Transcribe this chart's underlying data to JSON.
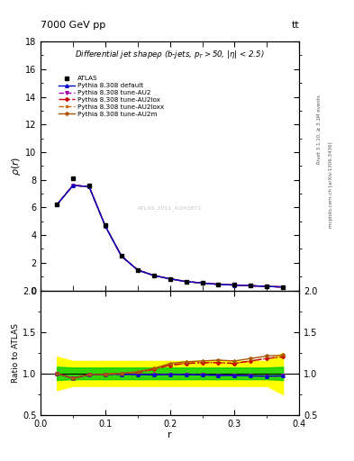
{
  "title_top": "7000 GeV pp",
  "title_top_right": "tt",
  "plot_title": "Differential jet shapep (b-jets, p_{T}>50, |\\eta| < 2.5)",
  "ylabel_main": "\\rho(r)",
  "ylabel_ratio": "Ratio to ATLAS",
  "xlabel": "r",
  "right_label_top": "Rivet 3.1.10, \\u2265 3.1M events",
  "right_label_bottom": "mcplots.cern.ch [arXiv:1306.3436]",
  "watermark": "ATLAS_2011_AI243871",
  "r_values": [
    0.025,
    0.05,
    0.075,
    0.1,
    0.125,
    0.15,
    0.175,
    0.2,
    0.225,
    0.25,
    0.275,
    0.3,
    0.325,
    0.35,
    0.375
  ],
  "atlas_data": [
    6.2,
    8.1,
    7.6,
    4.7,
    2.5,
    1.5,
    1.1,
    0.85,
    0.65,
    0.55,
    0.45,
    0.4,
    0.35,
    0.3,
    0.25
  ],
  "mc_data": [
    6.2,
    7.6,
    7.5,
    4.65,
    2.48,
    1.48,
    1.08,
    0.84,
    0.64,
    0.54,
    0.44,
    0.39,
    0.34,
    0.29,
    0.25
  ],
  "ratio_green_lo": [
    0.92,
    0.93,
    0.93,
    0.93,
    0.93,
    0.93,
    0.93,
    0.93,
    0.93,
    0.93,
    0.93,
    0.93,
    0.93,
    0.93,
    0.92
  ],
  "ratio_green_hi": [
    1.08,
    1.07,
    1.07,
    1.07,
    1.07,
    1.07,
    1.07,
    1.07,
    1.07,
    1.07,
    1.07,
    1.07,
    1.07,
    1.07,
    1.08
  ],
  "ratio_yellow_lo": [
    0.8,
    0.85,
    0.85,
    0.85,
    0.85,
    0.85,
    0.85,
    0.85,
    0.85,
    0.85,
    0.85,
    0.85,
    0.85,
    0.85,
    0.75
  ],
  "ratio_yellow_hi": [
    1.2,
    1.15,
    1.15,
    1.15,
    1.15,
    1.15,
    1.15,
    1.15,
    1.15,
    1.15,
    1.15,
    1.15,
    1.15,
    1.15,
    1.25
  ],
  "ratio_default": [
    1.0,
    0.94,
    0.987,
    0.989,
    0.99,
    0.987,
    0.982,
    0.988,
    0.985,
    0.982,
    0.978,
    0.975,
    0.971,
    0.967,
    0.97
  ],
  "ratio_au2": [
    1.0,
    0.94,
    0.987,
    0.989,
    0.99,
    0.987,
    0.982,
    0.988,
    0.985,
    0.982,
    0.978,
    0.975,
    0.971,
    0.967,
    0.97
  ],
  "ratio_au2lox": [
    1.0,
    0.94,
    0.987,
    0.989,
    1.0,
    1.01,
    1.05,
    1.1,
    1.12,
    1.13,
    1.13,
    1.12,
    1.15,
    1.18,
    1.2
  ],
  "ratio_au2loxx": [
    1.0,
    0.94,
    0.987,
    0.989,
    1.0,
    1.01,
    1.05,
    1.1,
    1.12,
    1.13,
    1.13,
    1.12,
    1.15,
    1.18,
    1.2
  ],
  "ratio_au2m": [
    1.0,
    0.94,
    0.987,
    0.989,
    1.0,
    1.02,
    1.06,
    1.12,
    1.14,
    1.15,
    1.16,
    1.15,
    1.18,
    1.21,
    1.22
  ],
  "color_default": "#0000cc",
  "color_au2": "#aa00aa",
  "color_au2lox": "#cc0000",
  "color_au2loxx": "#cc6600",
  "color_au2m": "#aa5500",
  "ylim_main": [
    0,
    18
  ],
  "ylim_ratio": [
    0.5,
    2.0
  ],
  "xlim": [
    0.0,
    0.4
  ],
  "yticks_main": [
    0,
    2,
    4,
    6,
    8,
    10,
    12,
    14,
    16,
    18
  ],
  "yticks_ratio": [
    0.5,
    1.0,
    1.5,
    2.0
  ],
  "xticks": [
    0.0,
    0.1,
    0.2,
    0.3,
    0.4
  ]
}
